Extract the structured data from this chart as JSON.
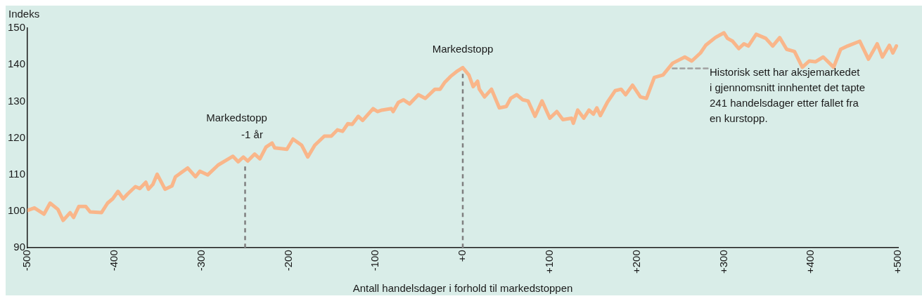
{
  "chart_data": {
    "type": "line",
    "xlabel": "Antall handelsdager i forhold til markedstoppen",
    "ylabel": "Indeks",
    "xlim": [
      -500,
      500
    ],
    "ylim": [
      90,
      150
    ],
    "xticks": [
      -500,
      -400,
      -300,
      -200,
      -100,
      {
        "value": 0,
        "label": "+0"
      },
      {
        "value": 100,
        "label": "+100"
      },
      {
        "value": 200,
        "label": "+200"
      },
      {
        "value": 300,
        "label": "+300"
      },
      {
        "value": 400,
        "label": "+400"
      },
      {
        "value": 500,
        "label": "+500"
      }
    ],
    "yticks": [
      90,
      100,
      110,
      120,
      130,
      140,
      150
    ],
    "grid": false,
    "legend": false,
    "marker": "none",
    "line_style": "solid",
    "series": [
      {
        "color": "#f9b68a",
        "x": [
          -500,
          -492,
          -481,
          -474,
          -465,
          -459,
          -451,
          -447,
          -441,
          -433,
          -428,
          -415,
          -408,
          -402,
          -396,
          -390,
          -385,
          -376,
          -371,
          -364,
          -361,
          -356,
          -351,
          -342,
          -334,
          -330,
          -316,
          -307,
          -302,
          -293,
          -281,
          -269,
          -264,
          -258,
          -252,
          -247,
          -239,
          -233,
          -226,
          -219,
          -216,
          -202,
          -195,
          -185,
          -178,
          -170,
          -159,
          -151,
          -144,
          -138,
          -132,
          -127,
          -120,
          -115,
          -103,
          -98,
          -93,
          -82,
          -80,
          -74,
          -68,
          -61,
          -51,
          -43,
          -32,
          -26,
          -21,
          -14,
          -6,
          0,
          7,
          12,
          17,
          19,
          25,
          33,
          42,
          50,
          55,
          62,
          69,
          75,
          83,
          91,
          100,
          108,
          115,
          125,
          127,
          132,
          139,
          145,
          150,
          154,
          158,
          166,
          175,
          182,
          187,
          195,
          204,
          211,
          220,
          230,
          241,
          255,
          263,
          273,
          279,
          290,
          300,
          304,
          310,
          317,
          323,
          328,
          337,
          348,
          356,
          364,
          372,
          381,
          390,
          398,
          405,
          414,
          426,
          434,
          442,
          456,
          466,
          476,
          482,
          490,
          494,
          498
        ],
        "values": [
          100.2,
          100.9,
          99.2,
          102.2,
          100.5,
          97.5,
          99.6,
          98.3,
          101.3,
          101.3,
          99.8,
          99.6,
          102.2,
          103.4,
          105.4,
          103.4,
          104.7,
          106.7,
          106.2,
          107.9,
          106,
          107.3,
          110.1,
          106,
          106.9,
          109.4,
          111.8,
          109.4,
          110.9,
          109.9,
          112.6,
          114.3,
          115,
          113.5,
          114.8,
          113.7,
          115.6,
          114.3,
          117.5,
          118.6,
          117.3,
          116.9,
          119.7,
          118,
          114.8,
          118,
          120.5,
          120.5,
          122.2,
          121.8,
          123.9,
          123.7,
          125.9,
          124.8,
          128,
          127.2,
          127.6,
          128,
          127.2,
          129.7,
          130.4,
          129.3,
          131.8,
          130.8,
          133.3,
          133.3,
          135.1,
          136.8,
          138.3,
          139.2,
          137.2,
          134,
          135.5,
          133.3,
          131.2,
          133.3,
          128.2,
          128.6,
          130.8,
          131.8,
          130.4,
          130.1,
          125.9,
          130.1,
          125.4,
          127.2,
          125,
          125.4,
          124,
          127.6,
          125.4,
          127.6,
          126.5,
          128.2,
          126.1,
          129.7,
          132.9,
          133.3,
          131.8,
          134.4,
          131.2,
          130.8,
          136.5,
          137.2,
          140.4,
          142.1,
          141,
          143.2,
          145.3,
          147.4,
          148.7,
          147.2,
          146.4,
          144.4,
          145.7,
          145.1,
          148.3,
          147.2,
          145.1,
          147.4,
          144.2,
          143.6,
          139.3,
          141,
          140.8,
          142.1,
          139.3,
          144.2,
          145.1,
          146.4,
          141.5,
          145.7,
          142.1,
          145.3,
          143.2,
          145.1
        ]
      },
      {
        "type": "line",
        "color": "#a0a0a0",
        "line_style": "dashed",
        "x": [
          241,
          285
        ],
        "values": [
          139,
          139
        ]
      }
    ],
    "ref_lines": [
      {
        "axis": "x",
        "value": -250,
        "color": "#7f7f7f",
        "line_style": "dashed"
      },
      {
        "axis": "x",
        "value": 0,
        "color": "#7f7f7f",
        "line_style": "dashed"
      }
    ],
    "annotations": [
      {
        "text": "Markedstopp\n-1 år",
        "x": -250,
        "y": 114
      },
      {
        "text": "Markedstopp",
        "x": 0,
        "y": 139.2
      },
      "Historisk sett har aksjemarkedet\ni gjennomsnitt innhentet det tapte\n241 handelsdager etter fallet fra\nen kurstopp."
    ]
  }
}
